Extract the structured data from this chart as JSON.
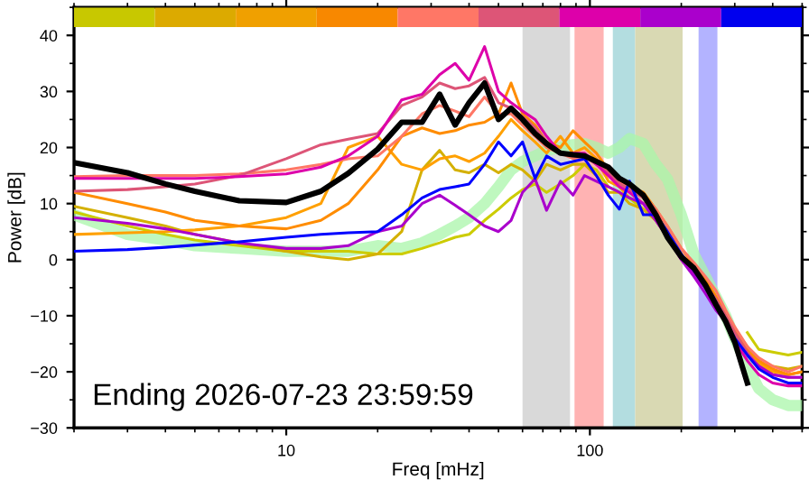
{
  "chart_data": {
    "type": "line",
    "xlabel": "Freq [mHz]",
    "ylabel": "Power [dB]",
    "log": "x",
    "xlim": [
      2,
      500
    ],
    "xticks": [
      10,
      100
    ],
    "ylim": [
      -30,
      45
    ],
    "yticks": [
      -30,
      -20,
      -10,
      0,
      10,
      20,
      30,
      40
    ],
    "grid": false,
    "legend": false,
    "marker": "none",
    "line_style": "solid",
    "annotations": [
      "Ending 2026-07-23 23:59:59"
    ],
    "bands": [
      {
        "axis": "x",
        "from": 60,
        "to": 86,
        "color": "#d9d9d9"
      },
      {
        "axis": "x",
        "from": 89,
        "to": 111,
        "color": "#ffb3b3"
      },
      {
        "axis": "x",
        "from": 119,
        "to": 141,
        "color": "#b3dde0"
      },
      {
        "axis": "x",
        "from": 141,
        "to": 202,
        "color": "#d9d9b3"
      },
      {
        "axis": "x",
        "from": 228,
        "to": 263,
        "color": "#b3b3ff"
      }
    ],
    "x": [
      2,
      3,
      4,
      5,
      7,
      10,
      13,
      16,
      20,
      24,
      28,
      32,
      36,
      40,
      45,
      50,
      55,
      60,
      66,
      72,
      80,
      88,
      96,
      105,
      115,
      125,
      135,
      150,
      165,
      180,
      200,
      220,
      240,
      260,
      280,
      300,
      330,
      360,
      400,
      450,
      500
    ],
    "series": [
      {
        "color": "#aaf5aa",
        "values": [
          8,
          4.5,
          3.5,
          2.5,
          2,
          1.5,
          1.5,
          1.5,
          2.5,
          2,
          3,
          4.5,
          6,
          7.5,
          10,
          13,
          16,
          17.5,
          18.5,
          19.5,
          20,
          20.5,
          20.7,
          20,
          19,
          20,
          21.6,
          20.7,
          17,
          14.4,
          8,
          1,
          -3,
          -6.6,
          -10,
          -14,
          -19,
          -23,
          -25,
          -26,
          -26
        ]
      },
      {
        "color": "#cccc00",
        "values": [
          8.5,
          6,
          4.5,
          3.5,
          2.5,
          1.5,
          1.5,
          1.5,
          1,
          1,
          2,
          3,
          4,
          4.5,
          7,
          9,
          11,
          12.5,
          13.5,
          12,
          13.5,
          15,
          17,
          16,
          13,
          12,
          11,
          9,
          7,
          4.5,
          null,
          null,
          null,
          null,
          null,
          null,
          -13,
          -16,
          -16.5,
          -17,
          -16.5
        ]
      },
      {
        "color": "#d4b000",
        "values": [
          9.5,
          7.5,
          6,
          4.5,
          3,
          1.5,
          0.5,
          0,
          1,
          5,
          16,
          19.5,
          16,
          15.5,
          17,
          15.5,
          17,
          16,
          14,
          17,
          16,
          17,
          17,
          15,
          12,
          12,
          10,
          9,
          7,
          4,
          0.5,
          -2,
          -5,
          -7,
          -10,
          -12.5,
          -15.5,
          -18.5,
          -19,
          -19.5,
          -19
        ]
      },
      {
        "color": "#ffa000",
        "values": [
          4.5,
          4.8,
          5,
          5.3,
          6,
          7.5,
          10,
          20,
          22,
          17,
          16,
          18,
          18.5,
          17.5,
          19,
          22,
          25,
          23,
          21,
          19,
          22,
          19,
          20,
          18,
          14,
          13,
          11,
          10,
          8,
          5,
          1,
          -2,
          -4.5,
          -7.5,
          -10.5,
          -13.5,
          -16.5,
          -18.5,
          -20,
          -20.5,
          -20
        ]
      },
      {
        "color": "#ff8c00",
        "values": [
          12,
          10,
          8.5,
          7,
          6,
          5.5,
          7,
          10,
          16,
          22,
          23.5,
          22.5,
          23,
          24,
          24.5,
          26,
          31.5,
          26,
          24,
          21,
          20,
          23,
          21,
          19,
          16,
          14,
          13,
          12,
          9,
          6,
          2,
          -1,
          -3.5,
          -6.5,
          -9.5,
          -12.5,
          -16,
          -18,
          -19.5,
          -20.5,
          -20
        ]
      },
      {
        "color": "#ff7766",
        "values": [
          14.8,
          15,
          15,
          15,
          15.3,
          16,
          17,
          18,
          18.5,
          22,
          26,
          27.5,
          26.5,
          25.5,
          29,
          26,
          26,
          24,
          22,
          20,
          19,
          18,
          18.5,
          17.5,
          15.5,
          14,
          13,
          11.5,
          9,
          6,
          2,
          -0.5,
          -3,
          -5.5,
          -9,
          -12,
          -15.5,
          -17.5,
          -19,
          -20,
          -19
        ]
      },
      {
        "color": "#dd5577",
        "values": [
          12.2,
          12.5,
          13,
          13.5,
          15,
          18,
          20.5,
          21.5,
          22.5,
          27.5,
          29,
          31.5,
          30.5,
          31,
          32.5,
          28,
          27,
          25.5,
          23.5,
          21,
          19,
          18.5,
          18.5,
          17,
          15.5,
          13.5,
          12.5,
          11,
          8,
          5,
          1,
          -1.5,
          -4.5,
          -7,
          -10,
          -13,
          -16.5,
          -19,
          -20.5,
          -21,
          -21
        ]
      },
      {
        "color": "#dd00aa",
        "values": [
          14.5,
          14.5,
          14.5,
          14.5,
          14.8,
          15.3,
          16.5,
          18.5,
          22,
          28.5,
          29.5,
          33,
          35,
          32,
          38,
          30,
          28,
          26.5,
          25,
          22,
          19,
          19,
          19,
          17,
          15,
          13,
          12,
          10,
          7,
          4,
          0,
          -2.5,
          -5,
          -8,
          -11,
          -14.5,
          -18,
          -20.5,
          -22,
          -22.5,
          -22.5
        ]
      },
      {
        "color": "#aa00cc",
        "values": [
          7.5,
          6.5,
          5.5,
          4.5,
          3,
          2,
          2,
          2.5,
          5,
          6,
          10,
          11.5,
          9.7,
          8,
          6,
          5,
          7,
          12,
          14.4,
          8.8,
          14,
          11.5,
          15,
          14,
          13,
          12,
          11,
          10,
          7,
          4,
          0,
          -3,
          -6,
          -9,
          -11,
          -14,
          -17,
          -19,
          -20.5,
          -21,
          -21
        ]
      },
      {
        "color": "#0000ff",
        "values": [
          1.5,
          1.8,
          2.2,
          2.6,
          3.2,
          4,
          4.5,
          4.8,
          5,
          8,
          11,
          12.5,
          13,
          13.5,
          17,
          21,
          18.5,
          21,
          14.5,
          18.5,
          17,
          17.5,
          18,
          15,
          11.5,
          9,
          14,
          8,
          8,
          5,
          1,
          -2,
          -5,
          -8,
          -11,
          -14,
          -17,
          -19.5,
          -21,
          -22,
          -22
        ]
      },
      {
        "color": "#000000",
        "values": [
          17.3,
          15.5,
          13.5,
          12.2,
          10.5,
          10.2,
          12.2,
          15.4,
          19.7,
          24.5,
          24.5,
          29.5,
          24,
          28,
          31.5,
          25,
          27,
          25,
          22.5,
          20.7,
          19,
          18.7,
          18.5,
          17.5,
          16.5,
          14.5,
          13.5,
          11.5,
          8,
          4,
          0.5,
          -1.5,
          -4.5,
          -8,
          -11,
          -14.7,
          -22,
          null,
          null,
          null,
          null
        ]
      }
    ]
  }
}
